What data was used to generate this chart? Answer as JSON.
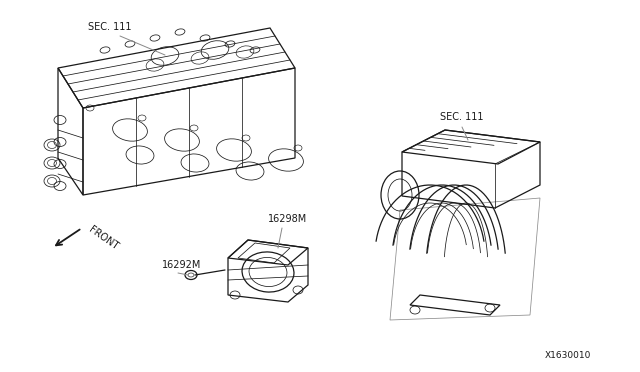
{
  "bg_color": "#ffffff",
  "line_color": "#1a1a1a",
  "label_color": "#1a1a1a",
  "leader_color": "#888888",
  "part_number": "X1630010",
  "labels": {
    "sec111_left": "SEC. 111",
    "sec111_right": "SEC. 111",
    "part_16298M": "16298M",
    "part_16292M": "16292M",
    "front": "FRONT"
  },
  "font_size": 7.0,
  "pn_font_size": 6.5
}
